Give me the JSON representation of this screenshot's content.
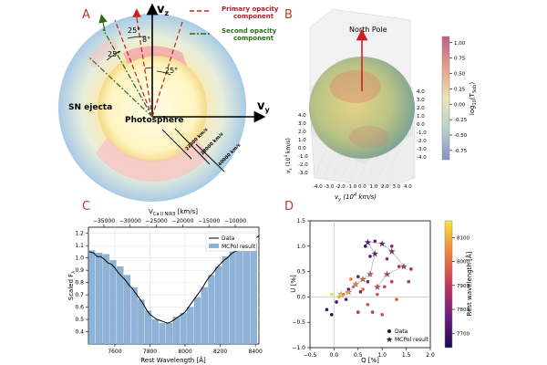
{
  "figure": {
    "panel_letters": [
      "A",
      "B",
      "C",
      "D"
    ],
    "colors": {
      "panel_letter": "#c0392b",
      "bar": "#8fb3d6",
      "data_line": "#000000"
    }
  },
  "panel_a": {
    "axis_labels": {
      "vz": "v",
      "vz_sub": "z",
      "vy": "v",
      "vy_sub": "y"
    },
    "legend": {
      "primary": "Primary opacity\ncomponent",
      "second": "Second opacity\ncomponent"
    },
    "angles": [
      "8°",
      "25°",
      "25°",
      "25°"
    ],
    "text": {
      "ejecta": "SN ejecta",
      "photosphere": "Photosphere"
    },
    "velocities": [
      "22000 km/s",
      "28000 km/s",
      "40000 km/s"
    ],
    "colors": {
      "primary": "#b0202a",
      "second": "#2e6b1a"
    }
  },
  "panel_b": {
    "pole_label": "North Pole",
    "xlabel": "v_y (10^4 km/s)",
    "zlabel": "v_z (10^4 km/s)",
    "xticks": [
      "-4.0",
      "-3.0",
      "-2.0",
      "-1.0",
      "0.0",
      "1.0",
      "2.0",
      "3.0",
      "4.0"
    ],
    "zticks": [
      "4.0",
      "3.0",
      "2.0",
      "1.0",
      "0.0",
      "-1.0",
      "-2.0",
      "-3.0"
    ],
    "side_ticks": [
      "4.0",
      "3.0",
      "2.0",
      "1.0",
      "0.0",
      "-1.0",
      "-2.0",
      "-3.0",
      "-4.0"
    ],
    "colorbar": {
      "label": "log10(Tsob)",
      "ticks": [
        "1.00",
        "0.75",
        "0.50",
        "0.25",
        "0.00",
        "-0.25",
        "-0.50",
        "-0.75"
      ],
      "range": [
        -0.9,
        1.1
      ]
    }
  },
  "chart_data": [
    {
      "type": "bar",
      "title": "",
      "xlabel": "Rest Wavelength [Å]",
      "ylabel": "Scaled F_λ",
      "top_axis_label": "V_Ca II NIR3 [km/s]",
      "top_ticks": [
        "-35000",
        "-30000",
        "-25000",
        "-20000",
        "-15000",
        "-10000"
      ],
      "xlim": [
        7450,
        8420
      ],
      "ylim": [
        0.3,
        1.25
      ],
      "xticks": [
        7600,
        7800,
        8000,
        8200,
        8400
      ],
      "yticks": [
        "0.4",
        "0.5",
        "0.6",
        "0.7",
        "0.8",
        "0.9",
        "1.0",
        "1.1",
        "1.2"
      ],
      "legend": [
        "Data",
        "MCPol result"
      ],
      "legend_position": "upper-right",
      "bar_width": 40,
      "bar_centers": [
        7470,
        7510,
        7550,
        7590,
        7630,
        7670,
        7710,
        7750,
        7790,
        7830,
        7870,
        7910,
        7950,
        7990,
        8030,
        8070,
        8110,
        8150,
        8190,
        8230,
        8270,
        8310,
        8350,
        8390
      ],
      "bar_values": [
        1.06,
        1.04,
        1.03,
        0.98,
        0.93,
        0.86,
        0.76,
        0.66,
        0.57,
        0.5,
        0.47,
        0.47,
        0.52,
        0.55,
        0.6,
        0.68,
        0.76,
        0.86,
        0.93,
        1.01,
        1.05,
        1.08,
        1.11,
        1.12
      ],
      "line_x": [
        7455,
        7480,
        7500,
        7520,
        7540,
        7560,
        7580,
        7600,
        7620,
        7640,
        7660,
        7680,
        7700,
        7720,
        7740,
        7760,
        7780,
        7800,
        7820,
        7840,
        7860,
        7880,
        7900,
        7920,
        7940,
        7960,
        7980,
        8000,
        8020,
        8040,
        8060,
        8080,
        8100,
        8120,
        8140,
        8160,
        8180,
        8200,
        8220,
        8240,
        8260,
        8280,
        8300,
        8320,
        8340,
        8360,
        8380,
        8400,
        8420
      ],
      "line_y": [
        1.05,
        1.04,
        1.01,
        1.01,
        0.99,
        0.96,
        0.95,
        0.92,
        0.88,
        0.85,
        0.82,
        0.78,
        0.75,
        0.71,
        0.67,
        0.63,
        0.58,
        0.54,
        0.52,
        0.5,
        0.49,
        0.48,
        0.47,
        0.48,
        0.5,
        0.52,
        0.54,
        0.56,
        0.6,
        0.64,
        0.68,
        0.72,
        0.76,
        0.81,
        0.85,
        0.88,
        0.92,
        0.95,
        0.98,
        1.0,
        1.03,
        1.05,
        1.06,
        1.07,
        1.09,
        1.11,
        1.13,
        1.16,
        1.18
      ]
    },
    {
      "type": "scatter",
      "title": "",
      "xlabel": "Q [%]",
      "ylabel": "U [%]",
      "xlim": [
        -0.5,
        2.0
      ],
      "ylim": [
        -1.0,
        1.5
      ],
      "xticks": [
        "-0.5",
        "0.0",
        "0.5",
        "1.0",
        "1.5",
        "2.0"
      ],
      "yticks": [
        "-1.0",
        "-0.5",
        "0.0",
        "0.5",
        "1.0",
        "1.5"
      ],
      "legend": [
        "Data",
        "MCPol result"
      ],
      "legend_position": "lower-right",
      "colorbar": {
        "label": "Rest wavelength [Å]",
        "ticks": [
          "8100",
          "8000",
          "7900",
          "7800",
          "7700"
        ],
        "range": [
          7640,
          8170
        ]
      },
      "data_points": [
        {
          "q": -0.15,
          "u": -0.25,
          "w": 7680
        },
        {
          "q": -0.05,
          "u": -0.35,
          "w": 7660
        },
        {
          "q": 0.05,
          "u": -0.1,
          "w": 7700
        },
        {
          "q": 0.25,
          "u": -0.05,
          "w": 7740
        },
        {
          "q": 0.3,
          "u": 0.15,
          "w": 7760
        },
        {
          "q": 0.55,
          "u": 0.1,
          "w": 7780
        },
        {
          "q": 0.5,
          "u": 0.4,
          "w": 7770
        },
        {
          "q": 0.7,
          "u": 0.3,
          "w": 7800
        },
        {
          "q": 0.75,
          "u": 0.8,
          "w": 7720
        },
        {
          "q": 0.65,
          "u": 1.0,
          "w": 7700
        },
        {
          "q": 0.85,
          "u": 1.1,
          "w": 7760
        },
        {
          "q": 1.1,
          "u": 0.75,
          "w": 7830
        },
        {
          "q": 1.2,
          "u": 1.0,
          "w": 7800
        },
        {
          "q": 1.35,
          "u": 0.6,
          "w": 7870
        },
        {
          "q": 1.6,
          "u": 0.55,
          "w": 7860
        },
        {
          "q": 1.55,
          "u": 0.3,
          "w": 7880
        },
        {
          "q": 1.2,
          "u": 0.3,
          "w": 7900
        },
        {
          "q": 1.05,
          "u": 0.2,
          "w": 7920
        },
        {
          "q": 0.9,
          "u": 0.05,
          "w": 7950
        },
        {
          "q": 0.7,
          "u": -0.15,
          "w": 7940
        },
        {
          "q": 0.5,
          "u": -0.3,
          "w": 7880
        },
        {
          "q": 0.8,
          "u": -0.3,
          "w": 7900
        },
        {
          "q": 1.0,
          "u": -0.35,
          "w": 7930
        },
        {
          "q": 1.3,
          "u": -0.05,
          "w": 7960
        },
        {
          "q": 0.2,
          "u": 0.05,
          "w": 8060
        },
        {
          "q": 0.4,
          "u": 0.2,
          "w": 8000
        },
        {
          "q": 0.1,
          "u": 0.0,
          "w": 8100
        },
        {
          "q": -0.05,
          "u": 0.05,
          "w": 8150
        },
        {
          "q": 0.35,
          "u": 0.35,
          "w": 8020
        },
        {
          "q": 0.6,
          "u": 0.15,
          "w": 7990
        }
      ],
      "mcpol_points": [
        {
          "q": 0.15,
          "u": 0.05,
          "w": 8120
        },
        {
          "q": 0.3,
          "u": 0.1,
          "w": 8080
        },
        {
          "q": 0.45,
          "u": 0.25,
          "w": 8030
        },
        {
          "q": 0.6,
          "u": 0.35,
          "w": 7990
        },
        {
          "q": 0.75,
          "u": 0.45,
          "w": 7950
        },
        {
          "q": 0.85,
          "u": 0.85,
          "w": 7780
        },
        {
          "q": 0.7,
          "u": 1.08,
          "w": 7730
        },
        {
          "q": 1.0,
          "u": 1.05,
          "w": 7760
        },
        {
          "q": 1.2,
          "u": 0.9,
          "w": 7820
        },
        {
          "q": 1.45,
          "u": 0.6,
          "w": 7870
        },
        {
          "q": 1.1,
          "u": 0.45,
          "w": 7900
        },
        {
          "q": 0.9,
          "u": 0.2,
          "w": 7930
        }
      ]
    }
  ]
}
